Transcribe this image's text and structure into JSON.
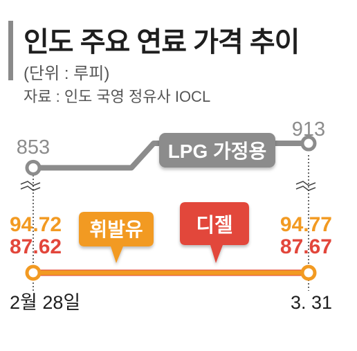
{
  "header": {
    "title": "인도 주요 연료 가격 추이",
    "unit": "(단위 : 루피)",
    "source": "자료 : 인도 국영 정유사 IOCL"
  },
  "colors": {
    "lpg": "#8c8c8c",
    "gasoline": "#f29a22",
    "diesel": "#e2463b",
    "text_dark": "#1e1e1e",
    "text_gray": "#555555"
  },
  "chart_data": {
    "type": "line",
    "x": [
      "2월 28일",
      "3. 31"
    ],
    "series": [
      {
        "name": "LPG 가정용",
        "values": [
          853,
          913
        ],
        "labels": [
          "853",
          "913"
        ],
        "color": "#8c8c8c"
      },
      {
        "name": "휘발유",
        "values": [
          94.72,
          94.77
        ],
        "labels": [
          "94.72",
          "94.77"
        ],
        "color": "#f29a22"
      },
      {
        "name": "디젤",
        "values": [
          87.62,
          87.67
        ],
        "labels": [
          "87.62",
          "87.67"
        ],
        "color": "#e2463b"
      }
    ],
    "axis_break": true,
    "grid": false
  }
}
